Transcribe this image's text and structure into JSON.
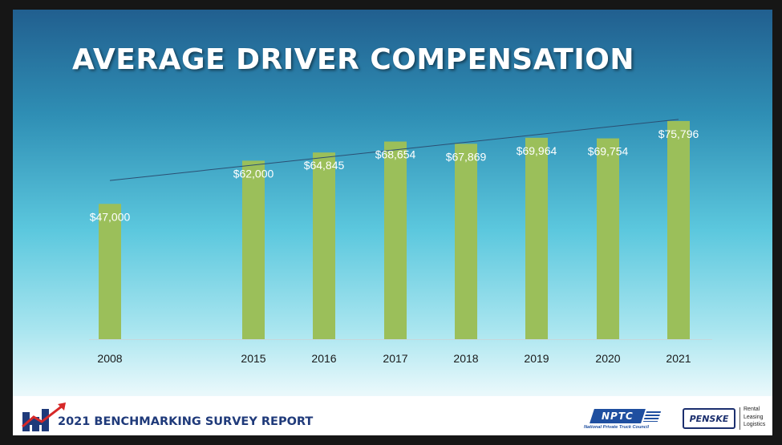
{
  "slide": {
    "title": "AVERAGE DRIVER COMPENSATION",
    "footer": {
      "report_year": "2021",
      "report_title": "BENCHMARKING SURVEY REPORT",
      "nptc_logo": "NPTC",
      "nptc_tagline": "National Private Truck Council",
      "penske_logo": "PENSKE",
      "penske_tagline": "Rental\nLeasing\nLogistics"
    }
  },
  "chart_data": {
    "type": "bar",
    "title": "AVERAGE DRIVER COMPENSATION",
    "x": [
      2008,
      2015,
      2016,
      2017,
      2018,
      2019,
      2020,
      2021
    ],
    "categories": [
      "2008",
      "2015",
      "2016",
      "2017",
      "2018",
      "2019",
      "2020",
      "2021"
    ],
    "values": [
      47000,
      62000,
      64845,
      68654,
      67869,
      69964,
      69754,
      75796
    ],
    "data_labels": [
      "$47,000",
      "$62,000",
      "$64,845",
      "$68,654",
      "$67,869",
      "$69,964",
      "$69,754",
      "$75,796"
    ],
    "xlabel": "",
    "ylabel": "",
    "trendline": true,
    "grid": false,
    "legend": "none"
  },
  "colors": {
    "bar": "#9bbf5a",
    "trendline": "#2b4f73",
    "title": "#ffffff",
    "report_title": "#1f3a7a"
  }
}
